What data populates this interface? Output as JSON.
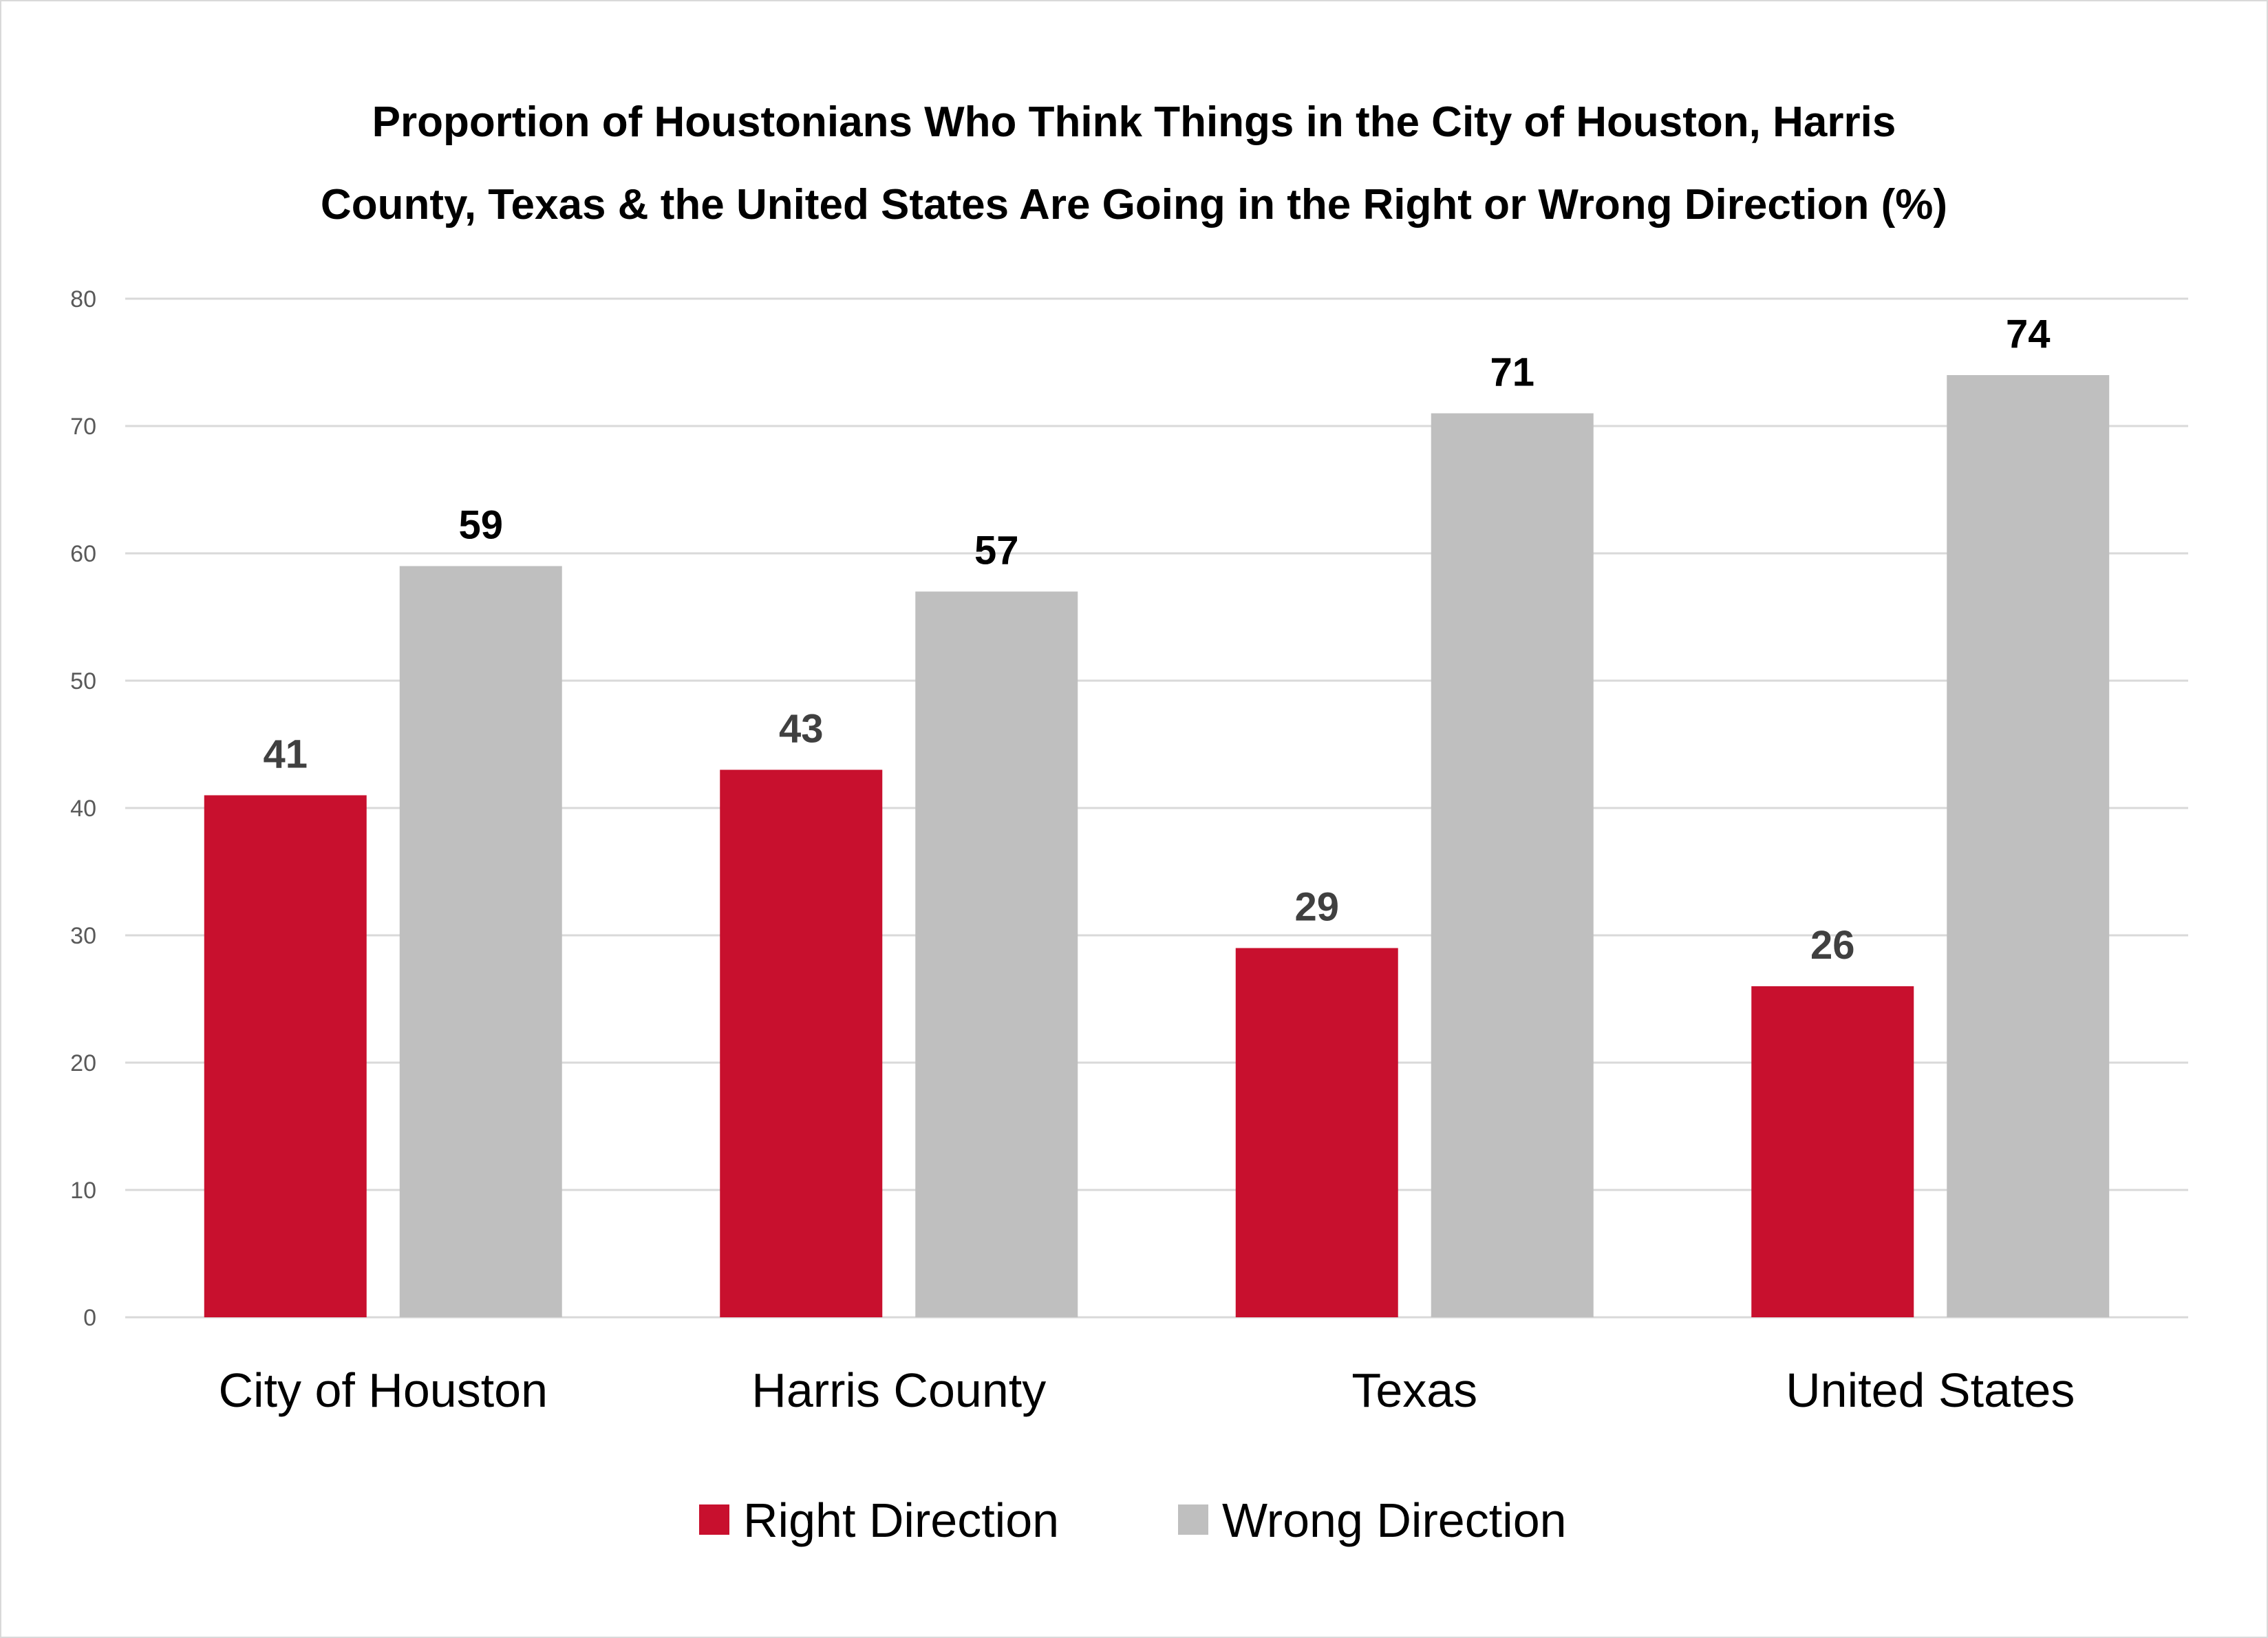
{
  "chart_data": {
    "type": "bar",
    "title_lines": [
      "Proportion of Houstonians Who Think Things in the City of Houston, Harris",
      "County, Texas & the United States Are Going in the Right or Wrong Direction (%)"
    ],
    "categories": [
      "City of Houston",
      "Harris County",
      "Texas",
      "United States"
    ],
    "series": [
      {
        "name": "Right Direction",
        "values": [
          41,
          43,
          29,
          26
        ],
        "color": "#c8102e",
        "label_color": "#404040"
      },
      {
        "name": "Wrong Direction",
        "values": [
          59,
          57,
          71,
          74
        ],
        "color": "#bfbfbf",
        "label_color": "#000000"
      }
    ],
    "ylim": [
      0,
      80
    ],
    "yticks": [
      0,
      10,
      20,
      30,
      40,
      50,
      60,
      70,
      80
    ],
    "grid": true,
    "legend_position": "bottom"
  }
}
